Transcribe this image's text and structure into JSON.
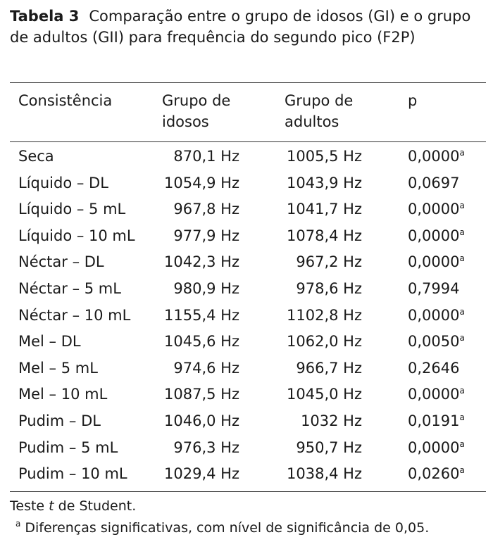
{
  "caption": {
    "label": "Tabela 3",
    "text": "Comparação entre o grupo de idosos (GI) e o grupo de adultos (GII) para frequência do segundo pico (F2P)"
  },
  "table": {
    "headers": {
      "col0": "Consistência",
      "col1_line1": "Grupo de",
      "col1_line2": "idosos",
      "col2_line1": "Grupo de",
      "col2_line2": "adultos",
      "col3": "p"
    },
    "rows": [
      {
        "name": "Seca",
        "g1": "870,1 Hz",
        "g2": "1005,5 Hz",
        "p": "0,0000",
        "sup": "a"
      },
      {
        "name": "Líquido – DL",
        "g1": "1054,9 Hz",
        "g2": "1043,9 Hz",
        "p": "0,0697",
        "sup": ""
      },
      {
        "name": "Líquido – 5 mL",
        "g1": "967,8 Hz",
        "g2": "1041,7 Hz",
        "p": "0,0000",
        "sup": "a"
      },
      {
        "name": "Líquido – 10 mL",
        "g1": "977,9 Hz",
        "g2": "1078,4 Hz",
        "p": "0,0000",
        "sup": "a"
      },
      {
        "name": "Néctar – DL",
        "g1": "1042,3 Hz",
        "g2": "967,2 Hz",
        "p": "0,0000",
        "sup": "a"
      },
      {
        "name": "Néctar – 5 mL",
        "g1": "980,9 Hz",
        "g2": "978,6 Hz",
        "p": "0,7994",
        "sup": ""
      },
      {
        "name": "Néctar – 10 mL",
        "g1": "1155,4 Hz",
        "g2": "1102,8 Hz",
        "p": "0,0000",
        "sup": "a"
      },
      {
        "name": "Mel – DL",
        "g1": "1045,6 Hz",
        "g2": "1062,0 Hz",
        "p": "0,0050",
        "sup": "a"
      },
      {
        "name": "Mel – 5 mL",
        "g1": "974,6 Hz",
        "g2": "966,7 Hz",
        "p": "0,2646",
        "sup": ""
      },
      {
        "name": "Mel – 10 mL",
        "g1": "1087,5 Hz",
        "g2": "1045,0 Hz",
        "p": "0,0000",
        "sup": "a"
      },
      {
        "name": "Pudim – DL",
        "g1": "1046,0 Hz",
        "g2": "1032 Hz",
        "p": "0,0191",
        "sup": "a"
      },
      {
        "name": "Pudim – 5 mL",
        "g1": "976,3 Hz",
        "g2": "950,7 Hz",
        "p": "0,0000",
        "sup": "a"
      },
      {
        "name": "Pudim – 10 mL",
        "g1": "1029,4 Hz",
        "g2": "1038,4 Hz",
        "p": "0,0260",
        "sup": "a"
      }
    ]
  },
  "footnotes": {
    "test_prefix": "Teste ",
    "test_italic": "t",
    "test_suffix": " de Student.",
    "sig_marker": "a",
    "sig_text": " Diferenças significativas, com nível de significância de 0,05."
  }
}
